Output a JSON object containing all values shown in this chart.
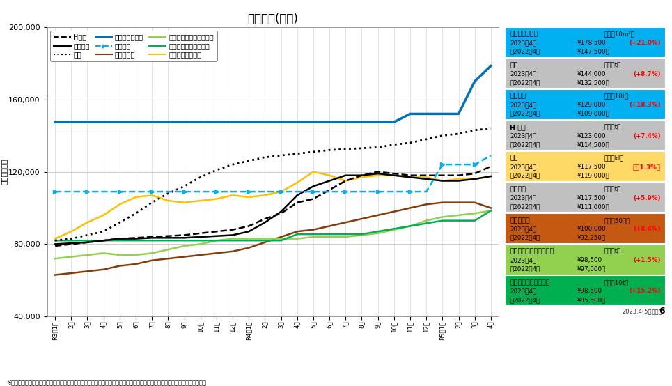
{
  "title": "価格推移(東京)",
  "ylabel": "（円／単位）",
  "footnote": "※市場の最新単価を把握するため、一般に公工事の予定価格の積算で使用される「建設物価」と「積算資料」の平均価格を表示",
  "x_labels": [
    "R3年1月",
    "2月",
    "3月",
    "4月",
    "5月",
    "6月",
    "7月",
    "8月",
    "9月",
    "10月",
    "11月",
    "12月",
    "R4年1月",
    "2月",
    "3月",
    "4月",
    "5月",
    "6月",
    "7月",
    "8月",
    "9月",
    "10月",
    "11月",
    "12月",
    "R5年1月",
    "2月",
    "3月",
    "4月"
  ],
  "ylim": [
    40000,
    200000
  ],
  "yticks": [
    40000,
    80000,
    120000,
    160000,
    200000
  ],
  "series": {
    "H形鋼": {
      "color": "#000000",
      "linestyle": "dashed",
      "linewidth": 1.8,
      "marker": null,
      "zorder": 5,
      "values": [
        79000,
        80000,
        81000,
        82000,
        83000,
        83500,
        84000,
        84500,
        85000,
        86000,
        87000,
        88000,
        90000,
        94000,
        97000,
        103000,
        105000,
        110000,
        115000,
        118000,
        120000,
        119000,
        118000,
        118000,
        118000,
        118000,
        119000,
        123000
      ]
    },
    "異形棒鋼": {
      "color": "#000000",
      "linestyle": "solid",
      "linewidth": 1.8,
      "marker": null,
      "zorder": 5,
      "values": [
        80000,
        80500,
        81000,
        82000,
        83000,
        83000,
        83500,
        83500,
        83500,
        84000,
        84500,
        85000,
        87000,
        92000,
        98000,
        107000,
        112000,
        115000,
        118000,
        118000,
        119000,
        118000,
        117000,
        116000,
        115000,
        115000,
        116000,
        117500
      ]
    },
    "厚板": {
      "color": "#000000",
      "linestyle": "dotted",
      "linewidth": 2.0,
      "marker": null,
      "zorder": 5,
      "values": [
        82000,
        83000,
        85000,
        87000,
        92000,
        97000,
        103000,
        108000,
        112000,
        117000,
        121000,
        124000,
        126000,
        128000,
        129000,
        130000,
        131000,
        132000,
        132500,
        133000,
        133500,
        135000,
        136000,
        138000,
        140000,
        141000,
        143000,
        144000
      ]
    },
    "生コンクリート": {
      "color": "#0070C0",
      "linestyle": "solid",
      "linewidth": 2.5,
      "marker": null,
      "zorder": 6,
      "values": [
        147500,
        147500,
        147500,
        147500,
        147500,
        147500,
        147500,
        147500,
        147500,
        147500,
        147500,
        147500,
        147500,
        147500,
        147500,
        147500,
        147500,
        147500,
        147500,
        147500,
        147500,
        147500,
        152000,
        152000,
        152000,
        152000,
        170000,
        178500
      ]
    },
    "セメント": {
      "color": "#00B0F0",
      "linestyle": "dashed",
      "linewidth": 1.8,
      "marker": ">",
      "markersize": 4,
      "zorder": 5,
      "values": [
        109000,
        109000,
        109000,
        109000,
        109000,
        109000,
        109000,
        109000,
        109000,
        109000,
        109000,
        109000,
        109000,
        109000,
        109000,
        109000,
        109000,
        109000,
        109000,
        109000,
        109000,
        109000,
        109000,
        109000,
        124000,
        124000,
        124000,
        129000
      ]
    },
    "型枠用合板": {
      "color": "#843C0C",
      "linestyle": "solid",
      "linewidth": 1.8,
      "marker": null,
      "zorder": 4,
      "values": [
        63000,
        64000,
        65000,
        66000,
        68000,
        69000,
        71000,
        72000,
        73000,
        74000,
        75000,
        76000,
        78000,
        81000,
        84000,
        87000,
        88000,
        90000,
        92000,
        94000,
        96000,
        98000,
        100000,
        102000,
        103000,
        103000,
        103000,
        100000
      ]
    },
    "ストレートアスファルト": {
      "color": "#92D050",
      "linestyle": "solid",
      "linewidth": 1.8,
      "marker": null,
      "zorder": 4,
      "values": [
        72000,
        73000,
        74000,
        75000,
        74000,
        74000,
        75000,
        77000,
        79000,
        80000,
        82000,
        83000,
        83000,
        83000,
        83000,
        83000,
        84000,
        84000,
        84000,
        85000,
        86000,
        88000,
        90000,
        93000,
        95000,
        96000,
        97000,
        98500
      ]
    },
    "再生アスファルト合材": {
      "color": "#00B050",
      "linestyle": "solid",
      "linewidth": 1.8,
      "marker": null,
      "zorder": 4,
      "values": [
        82000,
        82000,
        82000,
        82000,
        82000,
        82000,
        82000,
        82000,
        82000,
        82000,
        82000,
        82000,
        82000,
        82000,
        82000,
        85500,
        85500,
        85500,
        85500,
        85500,
        87000,
        88500,
        90000,
        91500,
        93000,
        93000,
        93000,
        98500
      ]
    },
    "軽油（ローリー）": {
      "color": "#FFC000",
      "linestyle": "solid",
      "linewidth": 1.8,
      "marker": null,
      "zorder": 4,
      "values": [
        83000,
        87000,
        92000,
        96000,
        102000,
        106000,
        107000,
        104000,
        103000,
        104000,
        105000,
        107000,
        106000,
        107000,
        109000,
        114000,
        120000,
        118000,
        115000,
        117000,
        118000,
        118000,
        117000,
        117000,
        115000,
        116000,
        116000,
        117500
      ]
    }
  },
  "legend_entries": [
    {
      "label": "H形鋼",
      "color": "#000000",
      "linestyle": "dashed",
      "marker": null
    },
    {
      "label": "異形棒鋼",
      "color": "#000000",
      "linestyle": "solid",
      "marker": null
    },
    {
      "label": "厚板",
      "color": "#000000",
      "linestyle": "dotted",
      "marker": null
    },
    {
      "label": "生コンクリート",
      "color": "#0070C0",
      "linestyle": "solid",
      "marker": null
    },
    {
      "label": "セメント",
      "color": "#00B0F0",
      "linestyle": "dashed",
      "marker": ">"
    },
    {
      "label": "型枠用合板",
      "color": "#843C0C",
      "linestyle": "solid",
      "marker": null
    },
    {
      "label": "ストレートアスファルト",
      "color": "#92D050",
      "linestyle": "solid",
      "marker": null
    },
    {
      "label": "再生アスファルト合材",
      "color": "#00B050",
      "linestyle": "solid",
      "marker": null
    },
    {
      "label": "軽油（ローリー）",
      "color": "#FFC000",
      "linestyle": "solid",
      "marker": null
    }
  ],
  "sidebar_items": [
    {
      "label": "生コンクリート",
      "unit": "（円／10m³）",
      "year2023": "¥178,500",
      "year2022": "¥147,500",
      "change": "(+21.0%)",
      "bg_color": "#00B0F0",
      "change_color": "#FF0000"
    },
    {
      "label": "厚板",
      "unit": "（円／t）",
      "year2023": "¥144,000",
      "year2022": "¥132,500",
      "change": "(+8.7%)",
      "bg_color": "#C0C0C0",
      "change_color": "#FF0000"
    },
    {
      "label": "セメント",
      "unit": "（円／10t）",
      "year2023": "¥129,000",
      "year2022": "¥109,000",
      "change": "(+18.3%)",
      "bg_color": "#00B0F0",
      "change_color": "#FF0000"
    },
    {
      "label": "H 型鋼",
      "unit": "（円／t）",
      "year2023": "¥123,000",
      "year2022": "¥114,500",
      "change": "(+7.4%)",
      "bg_color": "#C0C0C0",
      "change_color": "#FF0000"
    },
    {
      "label": "軽油",
      "unit": "（円／kl）",
      "year2023": "¥117,500",
      "year2022": "¥119,000",
      "change": "（－1.3%）",
      "bg_color": "#FFD966",
      "change_color": "#FF0000"
    },
    {
      "label": "異形棒鋼",
      "unit": "（円／t）",
      "year2023": "¥117,500",
      "year2022": "¥111,000",
      "change": "(+5.9%)",
      "bg_color": "#C0C0C0",
      "change_color": "#FF0000"
    },
    {
      "label": "型枠用合板",
      "unit": "（円／50枚）",
      "year2023": "¥100,000",
      "year2022": "¥92,250",
      "change": "(+8.4%)",
      "bg_color": "#C65911",
      "change_color": "#FF0000"
    },
    {
      "label": "ストレートアスファルト",
      "unit": "（円／t）",
      "year2023": "¥98,500",
      "year2022": "¥97,000",
      "change": "(+1.5%)",
      "bg_color": "#92D050",
      "change_color": "#FF0000"
    },
    {
      "label": "再生アスファルト合材",
      "unit": "（円／10t）",
      "year2023": "¥98,500",
      "year2022": "¥85,500",
      "change": "(+15.2%)",
      "bg_color": "#00B050",
      "change_color": "#FF0000"
    }
  ],
  "bg_color": "#FFFFFF",
  "grid_color": "#CCCCCC",
  "axis_bg_color": "#FFFFFF"
}
